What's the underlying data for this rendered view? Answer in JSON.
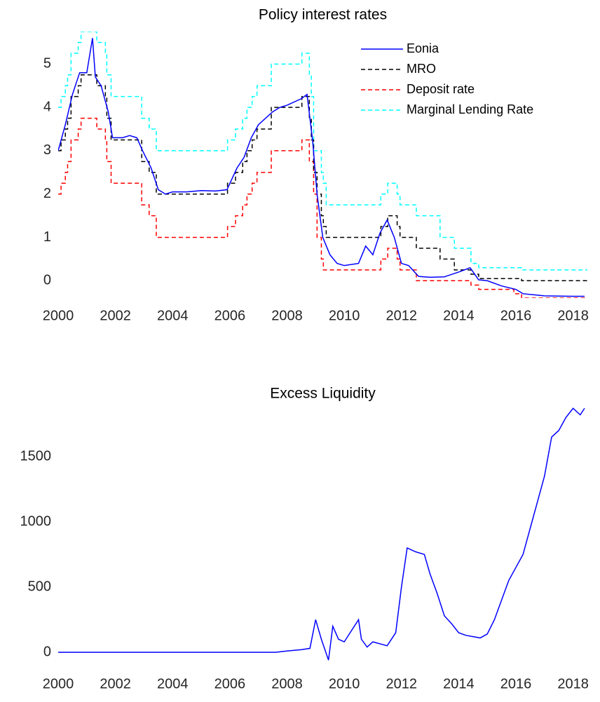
{
  "chart_data": [
    {
      "type": "line",
      "title": "Policy interest rates",
      "x": [
        2000.0,
        2000.1,
        2000.25,
        2000.33,
        2000.45,
        2000.7,
        2000.8,
        2001.35,
        2001.65,
        2001.7,
        2001.85,
        2002.92,
        2003.18,
        2003.43,
        2005.92,
        2006.2,
        2006.45,
        2006.6,
        2006.78,
        2006.95,
        2007.45,
        2008.52,
        2008.78,
        2008.85,
        2008.93,
        2009.05,
        2009.2,
        2009.27,
        2009.37,
        2011.28,
        2011.52,
        2011.85,
        2011.95,
        2012.52,
        2013.35,
        2013.85,
        2014.43,
        2014.7,
        2015.93,
        2016.2,
        2018.5
      ],
      "series": [
        {
          "name": "Eonia",
          "color": "#0000ff",
          "line_style": "solid",
          "step": false,
          "x": [
            2000.0,
            2000.25,
            2000.5,
            2000.75,
            2001.0,
            2001.2,
            2001.3,
            2001.5,
            2001.75,
            2001.9,
            2002.25,
            2002.5,
            2002.75,
            2002.95,
            2003.25,
            2003.5,
            2003.75,
            2004.0,
            2004.5,
            2005.0,
            2005.5,
            2005.9,
            2006.25,
            2006.5,
            2006.75,
            2007.0,
            2007.5,
            2007.75,
            2008.0,
            2008.5,
            2008.7,
            2008.9,
            2009.05,
            2009.25,
            2009.5,
            2009.75,
            2010.0,
            2010.5,
            2010.75,
            2011.0,
            2011.25,
            2011.5,
            2011.75,
            2012.0,
            2012.25,
            2012.6,
            2013.0,
            2013.5,
            2014.0,
            2014.4,
            2014.7,
            2015.0,
            2015.5,
            2016.0,
            2016.25,
            2017.0,
            2018.0,
            2018.4
          ],
          "values": [
            3.0,
            3.6,
            4.3,
            4.8,
            4.8,
            5.6,
            4.7,
            4.5,
            3.9,
            3.3,
            3.3,
            3.35,
            3.3,
            3.0,
            2.6,
            2.1,
            2.0,
            2.05,
            2.05,
            2.08,
            2.07,
            2.1,
            2.6,
            2.85,
            3.3,
            3.6,
            3.9,
            4.0,
            4.05,
            4.2,
            4.3,
            3.2,
            2.0,
            1.0,
            0.6,
            0.4,
            0.35,
            0.4,
            0.8,
            0.6,
            1.1,
            1.4,
            1.0,
            0.4,
            0.35,
            0.1,
            0.08,
            0.09,
            0.2,
            0.3,
            0.02,
            0.0,
            -0.12,
            -0.2,
            -0.3,
            -0.35,
            -0.36,
            -0.36
          ]
        },
        {
          "name": "MRO",
          "color": "#000000",
          "line_style": "dashed",
          "step": true,
          "values": [
            3.0,
            3.25,
            3.5,
            3.75,
            4.25,
            4.5,
            4.75,
            4.5,
            4.25,
            3.75,
            3.25,
            2.75,
            2.5,
            2.0,
            2.25,
            2.5,
            2.75,
            3.0,
            3.25,
            3.5,
            4.0,
            4.25,
            3.75,
            3.25,
            2.5,
            2.0,
            1.5,
            1.25,
            1.0,
            1.25,
            1.5,
            1.25,
            1.0,
            0.75,
            0.5,
            0.25,
            0.15,
            0.05,
            0.05,
            0.0,
            0.0
          ]
        },
        {
          "name": "Deposit rate",
          "color": "#ff0000",
          "line_style": "dashed",
          "step": true,
          "values": [
            2.0,
            2.25,
            2.5,
            2.75,
            3.25,
            3.5,
            3.75,
            3.5,
            3.25,
            2.75,
            2.25,
            1.75,
            1.5,
            1.0,
            1.25,
            1.5,
            1.75,
            2.0,
            2.25,
            2.5,
            3.0,
            3.25,
            2.75,
            2.75,
            2.0,
            1.0,
            0.5,
            0.25,
            0.25,
            0.5,
            0.75,
            0.5,
            0.25,
            0.0,
            0.0,
            0.0,
            -0.1,
            -0.2,
            -0.3,
            -0.4,
            -0.4
          ]
        },
        {
          "name": "Marginal Lending Rate",
          "color": "#00ffff",
          "line_style": "dashed",
          "step": true,
          "values": [
            4.0,
            4.25,
            4.5,
            4.75,
            5.25,
            5.5,
            5.75,
            5.5,
            5.25,
            4.75,
            4.25,
            3.75,
            3.5,
            3.0,
            3.25,
            3.5,
            3.75,
            4.0,
            4.25,
            4.5,
            5.0,
            5.25,
            4.75,
            4.25,
            3.0,
            3.0,
            2.5,
            2.25,
            1.75,
            2.0,
            2.25,
            2.0,
            1.75,
            1.5,
            1.0,
            0.75,
            0.4,
            0.3,
            0.3,
            0.25,
            0.25
          ]
        }
      ],
      "xlim": [
        2000,
        2018.5
      ],
      "xticks": [
        2000,
        2002,
        2004,
        2006,
        2008,
        2010,
        2012,
        2014,
        2016,
        2018
      ],
      "ylim": [
        -0.4,
        5.75
      ],
      "yticks": [
        0,
        1,
        2,
        3,
        4,
        5
      ],
      "legend": "northeast",
      "grid": false
    },
    {
      "type": "line",
      "title": "Excess Liquidity",
      "x": [
        2000.0,
        2007.6,
        2008.0,
        2008.5,
        2008.8,
        2009.0,
        2009.2,
        2009.45,
        2009.6,
        2009.8,
        2010.0,
        2010.5,
        2010.6,
        2010.8,
        2011.0,
        2011.5,
        2011.8,
        2012.0,
        2012.2,
        2012.5,
        2012.8,
        2013.0,
        2013.25,
        2013.5,
        2013.75,
        2014.0,
        2014.25,
        2014.5,
        2014.75,
        2015.0,
        2015.25,
        2015.5,
        2015.75,
        2016.0,
        2016.25,
        2016.5,
        2016.75,
        2017.0,
        2017.25,
        2017.5,
        2017.75,
        2018.0,
        2018.25,
        2018.4
      ],
      "series": [
        {
          "color": "#0000ff",
          "line_style": "solid",
          "step": false,
          "values": [
            0,
            0,
            10,
            20,
            30,
            250,
            100,
            -60,
            200,
            100,
            80,
            250,
            100,
            40,
            80,
            50,
            150,
            500,
            800,
            770,
            750,
            600,
            450,
            280,
            220,
            150,
            130,
            120,
            110,
            140,
            250,
            400,
            550,
            650,
            750,
            950,
            1150,
            1350,
            1650,
            1700,
            1800,
            1870,
            1820,
            1870
          ]
        }
      ],
      "xlim": [
        2000,
        2018.5
      ],
      "xticks": [
        2000,
        2002,
        2004,
        2006,
        2008,
        2010,
        2012,
        2014,
        2016,
        2018
      ],
      "ylim": [
        -80,
        1925
      ],
      "yticks": [
        0,
        500,
        1000,
        1500
      ],
      "grid": false
    }
  ]
}
